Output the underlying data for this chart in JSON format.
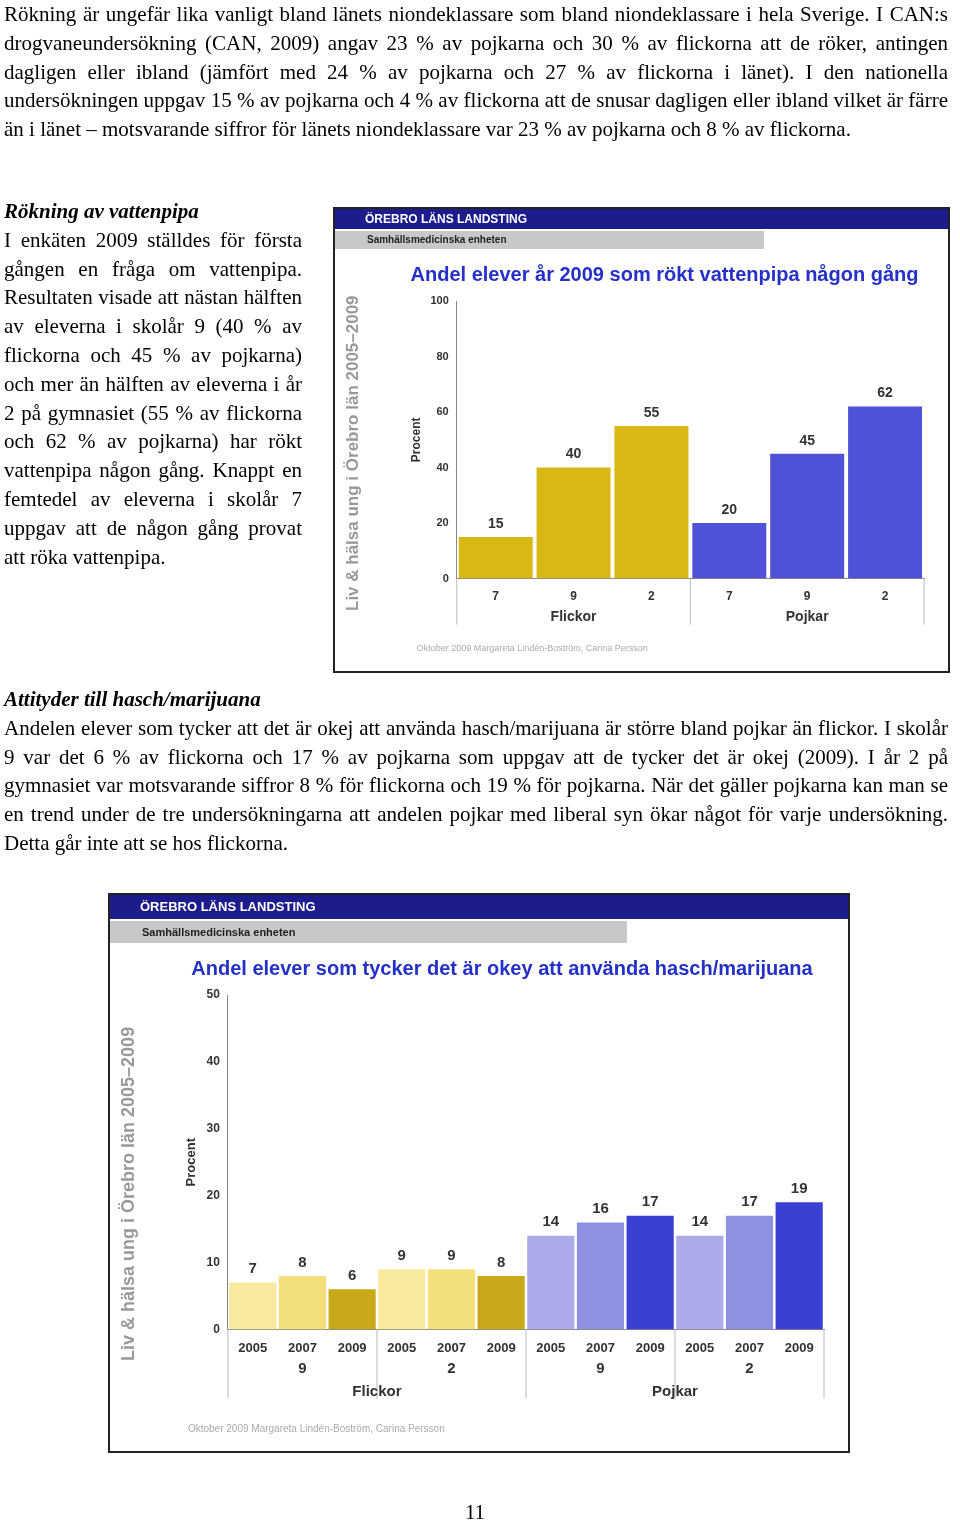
{
  "chart_data": [
    {
      "type": "other",
      "annotations": [
        "Rökning är ungefär lika vanligt bland länets niondeklassare som bland niondeklassare i hela Sverige. I CAN:s drogvaneundersökning (CAN, 2009) angav 23 % av pojkarna och 30 % av flickorna att de röker, antingen dagligen eller ibland (jämfört med 24 % av pojkarna och 27 % av flickorna i länet). I den nationella undersökningen uppgav 15 % av pojkarna och 4 % av flickorna att de snusar dagligen eller ibland vilket är färre än i länet – motsvarande siffror för länets niondeklassare var 23 % av pojkarna och 8 % av flickorna."
      ]
    },
    {
      "type": "other",
      "title": "Rökning av vattenpipa",
      "annotations": [
        "I enkäten 2009 ställdes för första gången en fråga om vattenpipa. Resultaten visade att nästan hälften av eleverna i skolår 9 (40 % av flickorna och 45 % av pojkarna) och mer än hälften av eleverna i år 2 på gymnasiet (55 % av flickorna och 62 % av pojkarna) har rökt vattenpipa någon gång. Knappt en femtedel av eleverna i skolår 7 uppgav att de någon gång provat att röka vattenpipa."
      ]
    },
    {
      "type": "bar",
      "title": "Andel elever år 2009 som rökt vattenpipa någon gång",
      "ylabel": "Procent",
      "categories": [
        "7",
        "9",
        "2",
        "7",
        "9",
        "2"
      ],
      "values": [
        15,
        40,
        55,
        20,
        45,
        62
      ],
      "colors": [
        "#d9b714",
        "#d9b714",
        "#d9b714",
        "#4f52d6",
        "#4f52d6",
        "#4f52d6"
      ],
      "data_labels": true,
      "ylim": [
        0,
        100
      ],
      "yticks": [
        0,
        20,
        40,
        60,
        80,
        100
      ],
      "annotations": [
        "ÖREBRO LÄNS LANDSTING",
        "Samhällsmedicinska enheten",
        "Liv & hälsa ung i Örebro län 2005–2009",
        "Oktober 2009 Margareta Lindén-Boström, Carina Persson",
        "Flickor",
        "Pojkar"
      ]
    },
    {
      "type": "other",
      "title": "Attityder till hasch/marijuana",
      "annotations": [
        "Andelen elever som tycker att det är okej att använda hasch/marijuana är större bland pojkar än flickor. I skolår 9 var det 6 % av flickorna och 17 % av pojkarna som uppgav att de tycker det är okej (2009). I år 2 på gymnasiet var motsvarande siffror 8 % för flickorna och 19 % för pojkarna. När det gäller pojkarna kan man se en trend under de tre undersökningarna att andelen pojkar med liberal syn ökar något för varje undersökning. Detta går inte att se hos flickorna."
      ]
    },
    {
      "type": "bar",
      "title": "Andel elever som tycker det är okey att använda hasch/marijuana",
      "ylabel": "Procent",
      "categories": [
        "2005",
        "2007",
        "2009",
        "2005",
        "2007",
        "2009",
        "2005",
        "2007",
        "2009",
        "2005",
        "2007",
        "2009"
      ],
      "values": [
        7,
        8,
        6,
        9,
        9,
        8,
        14,
        16,
        17,
        14,
        17,
        19
      ],
      "colors": [
        "#f8ea9c",
        "#f3e07a",
        "#c9a81a",
        "#f8ea9c",
        "#f3e07a",
        "#c9a81a",
        "#aaabe8",
        "#8e90e0",
        "#3c40d2",
        "#aaabe8",
        "#8e90e0",
        "#3c40d2"
      ],
      "data_labels": true,
      "ylim": [
        0,
        50
      ],
      "yticks": [
        0,
        10,
        20,
        30,
        40,
        50
      ],
      "annotations": [
        "ÖREBRO LÄNS LANDSTING",
        "Samhällsmedicinska enheten",
        "Liv & hälsa ung i Örebro län 2005–2009",
        "Oktober 2009 Margareta Lindén-Boström, Carina Persson",
        "9",
        "2",
        "9",
        "2",
        "Flickor",
        "Pojkar"
      ]
    },
    {
      "type": "other",
      "annotations": [
        "11"
      ]
    }
  ]
}
